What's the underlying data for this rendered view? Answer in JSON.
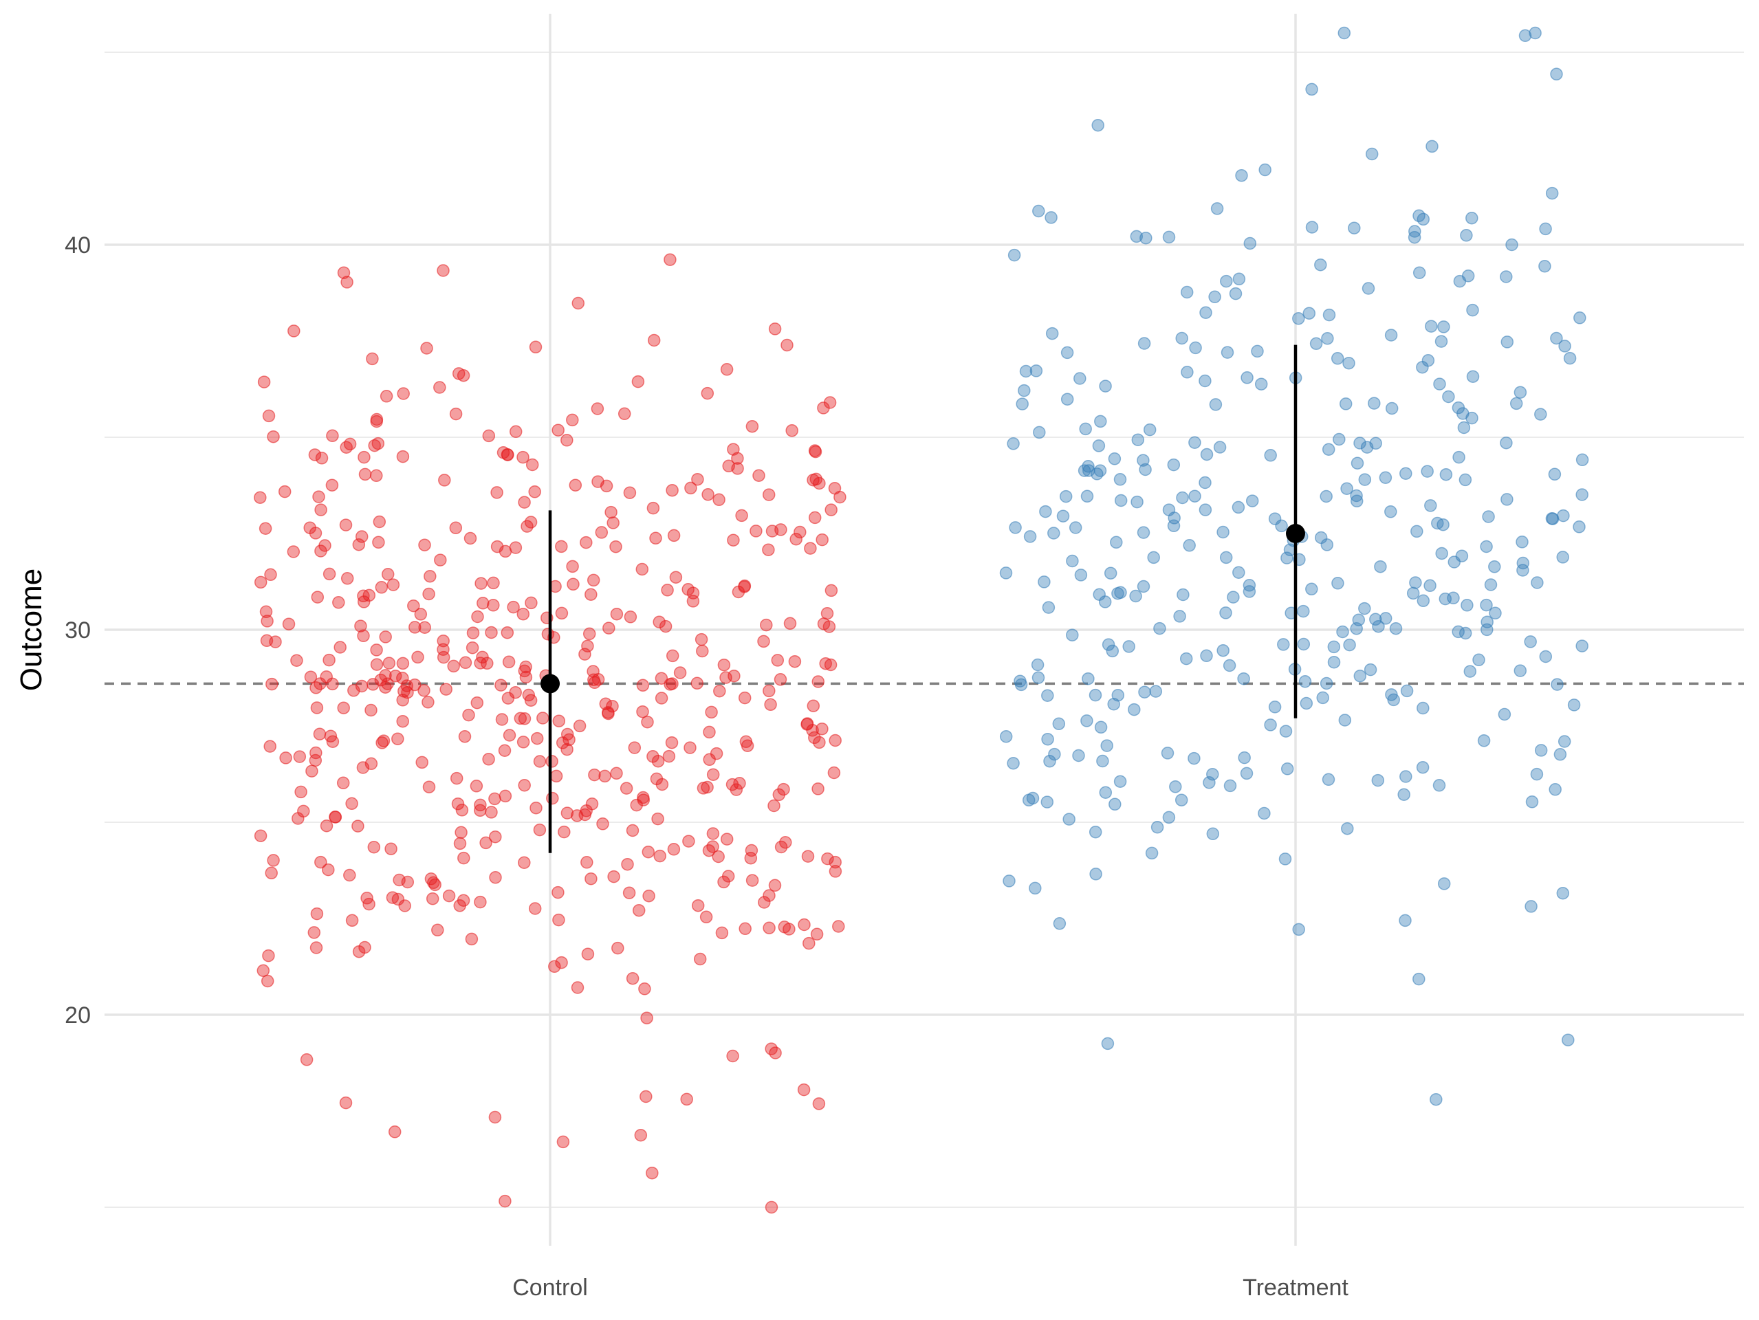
{
  "chart_data": {
    "type": "scatter",
    "ylabel": "Outcome",
    "xlabel": "",
    "categories": [
      "Control",
      "Treatment"
    ],
    "ylim": [
      14.0,
      46.0
    ],
    "yticks": [
      20,
      30,
      40
    ],
    "grid": true,
    "reference_line": {
      "y": 28.6,
      "style": "dashed",
      "color": "#7f7f7f"
    },
    "series": [
      {
        "category": "Control",
        "color": "#e41a1c",
        "mean": 28.6,
        "interval": [
          24.2,
          33.1
        ],
        "n": 500,
        "jitter_half_width": 0.39,
        "summary": {
          "min": 15.0,
          "max": 39.8,
          "sd": 4.5
        }
      },
      {
        "category": "Treatment",
        "color": "#377eb8",
        "mean": 32.5,
        "interval": [
          27.7,
          37.4
        ],
        "n": 350,
        "jitter_half_width": 0.39,
        "summary": {
          "min": 17.8,
          "max": 45.5,
          "sd": 4.9
        }
      }
    ]
  }
}
